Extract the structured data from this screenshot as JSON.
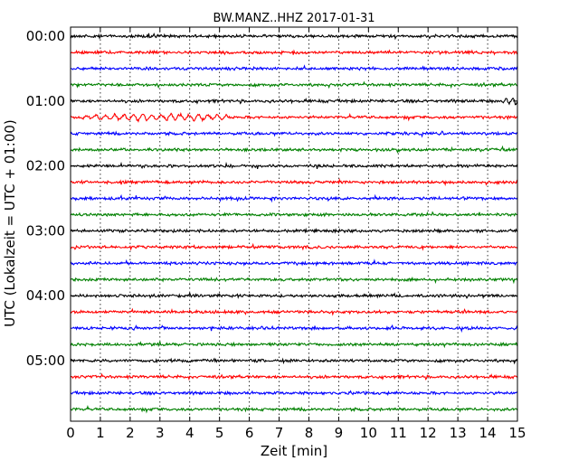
{
  "chart_data": {
    "type": "line",
    "title": "BW.MANZ..HHZ 2017-01-31",
    "xlabel": "Zeit  [min]",
    "ylabel": "UTC (Lokalzeit = UTC + 01:00)",
    "xlim": [
      0,
      15
    ],
    "x_ticks": [
      "0",
      "1",
      "2",
      "3",
      "4",
      "5",
      "6",
      "7",
      "8",
      "9",
      "10",
      "11",
      "12",
      "13",
      "14",
      "15"
    ],
    "y_tick_labels": [
      "00:00",
      "01:00",
      "02:00",
      "03:00",
      "04:00",
      "05:00"
    ],
    "trace_interval_min": 15,
    "trace_count": 24,
    "grid": "vertical dotted lines at each minute",
    "colors": [
      "#000000",
      "#ff0000",
      "#0000ff",
      "#008000"
    ],
    "events": [
      {
        "trace": 4,
        "start_min": 14.3,
        "end_min": 15.0,
        "note": "larger amplitude oscillation"
      },
      {
        "trace": 5,
        "start_min": 0.3,
        "end_min": 5.3,
        "note": "long-period wave train"
      }
    ]
  }
}
